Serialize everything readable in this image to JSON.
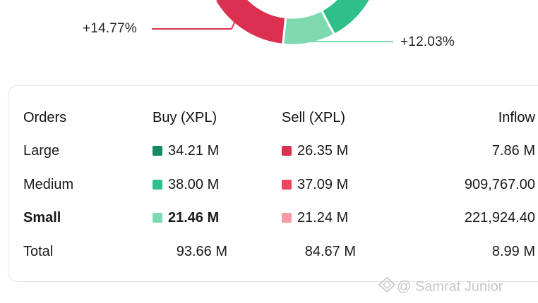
{
  "chart_data": {
    "type": "pie",
    "callouts": [
      {
        "label": "+14.77%",
        "color": "#dc3050"
      },
      {
        "label": "+12.03%",
        "color": "#7dd9b0"
      }
    ]
  },
  "table": {
    "headers": [
      "Orders",
      "Buy (XPL)",
      "Sell (XPL)",
      "Inflow"
    ],
    "rows": [
      {
        "label": "Large",
        "buy": "34.21 M",
        "sell": "26.35 M",
        "inflow": "7.86 M",
        "buy_color": "#148a5e",
        "sell_color": "#dc3050",
        "bold": false
      },
      {
        "label": "Medium",
        "buy": "38.00 M",
        "sell": "37.09 M",
        "inflow": "909,767.00",
        "buy_color": "#2fc08a",
        "sell_color": "#f0435f",
        "bold": false
      },
      {
        "label": "Small",
        "buy": "21.46 M",
        "sell": "21.24 M",
        "inflow": "221,924.40",
        "buy_color": "#7dd9b0",
        "sell_color": "#f79aa5",
        "bold": true
      }
    ],
    "total": {
      "label": "Total",
      "buy": "93.66 M",
      "sell": "84.67 M",
      "inflow": "8.99 M"
    }
  },
  "watermark": {
    "text": "@ Samrat Junior"
  },
  "colors": {
    "accent_green": "#2fc08a",
    "accent_red": "#dc3050"
  }
}
